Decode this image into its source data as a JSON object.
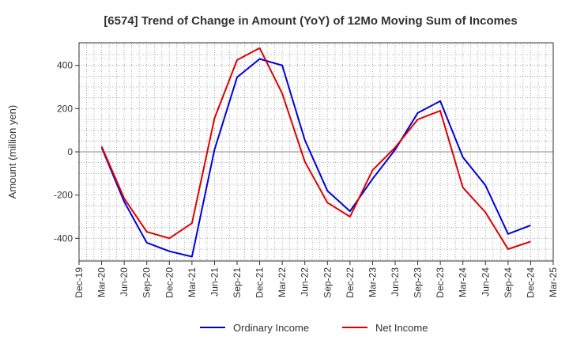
{
  "chart_data": {
    "type": "line",
    "title": "[6574]  Trend of Change in Amount (YoY) of 12Mo Moving Sum of Incomes",
    "xlabel": "",
    "ylabel": "Amount (million yen)",
    "x_ticks": [
      "Dec-19",
      "Mar-20",
      "Jun-20",
      "Sep-20",
      "Dec-20",
      "Mar-21",
      "Jun-21",
      "Sep-21",
      "Dec-21",
      "Mar-22",
      "Jun-22",
      "Sep-22",
      "Dec-22",
      "Mar-23",
      "Jun-23",
      "Sep-23",
      "Dec-23",
      "Mar-24",
      "Jun-24",
      "Sep-24",
      "Dec-24",
      "Mar-25"
    ],
    "y_ticks": [
      -400,
      -200,
      0,
      200,
      400
    ],
    "ylim": [
      -505,
      505
    ],
    "grid": true,
    "legend_position": "bottom-center",
    "x": [
      "Mar-20",
      "Jun-20",
      "Sep-20",
      "Dec-20",
      "Mar-21",
      "Jun-21",
      "Sep-21",
      "Dec-21",
      "Mar-22",
      "Jun-22",
      "Sep-22",
      "Dec-22",
      "Mar-23",
      "Jun-23",
      "Sep-23",
      "Dec-23",
      "Mar-24",
      "Jun-24",
      "Sep-24",
      "Dec-24"
    ],
    "series": [
      {
        "name": "Ordinary Income",
        "color": "#0000dd",
        "values": [
          20,
          -230,
          -420,
          -460,
          -485,
          10,
          345,
          430,
          400,
          55,
          -180,
          -275,
          -125,
          10,
          180,
          235,
          -25,
          -155,
          -380,
          -340
        ]
      },
      {
        "name": "Net Income",
        "color": "#dd0000",
        "values": [
          25,
          -215,
          -370,
          -400,
          -330,
          155,
          425,
          480,
          270,
          -45,
          -235,
          -300,
          -85,
          20,
          150,
          190,
          -165,
          -280,
          -450,
          -415
        ]
      }
    ]
  }
}
